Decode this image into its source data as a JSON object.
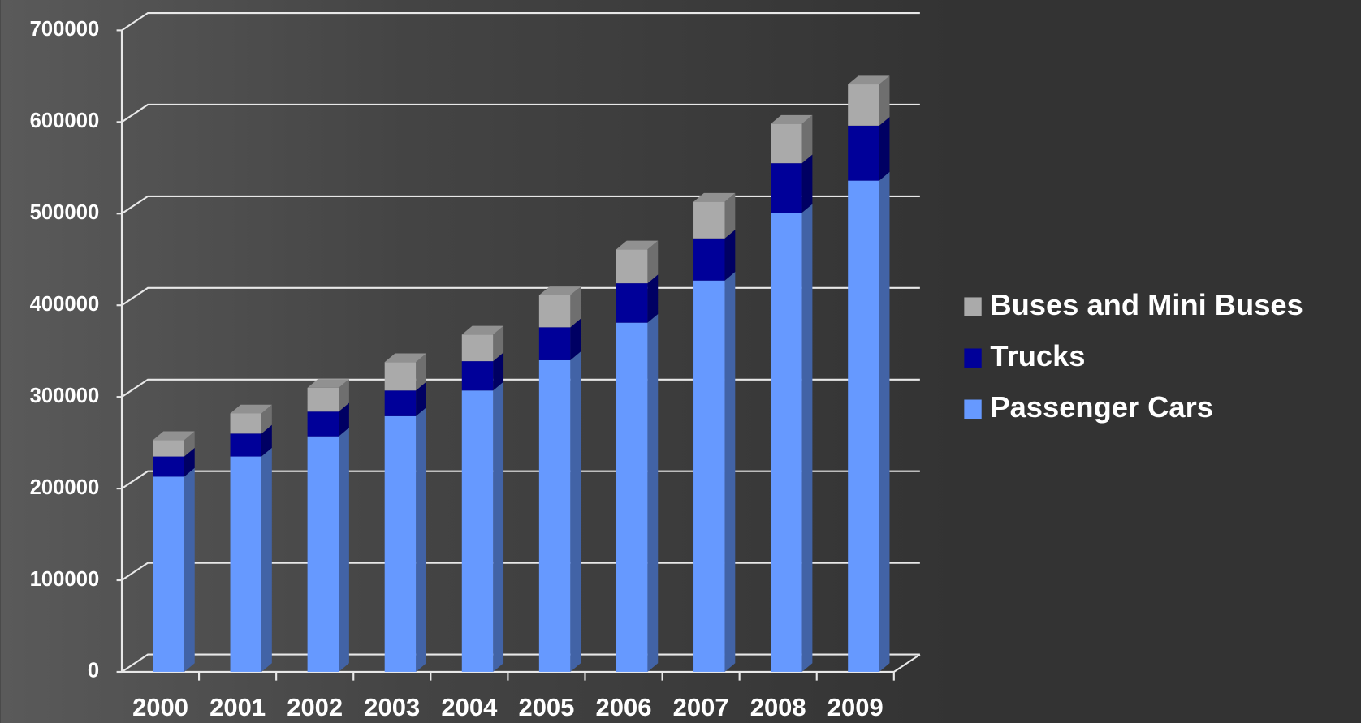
{
  "chart_data": {
    "type": "bar3d-stacked",
    "categories": [
      "2000",
      "2001",
      "2002",
      "2003",
      "2004",
      "2005",
      "2006",
      "2007",
      "2008",
      "2009"
    ],
    "series": [
      {
        "name": "Passenger Cars",
        "color": "#6699ff",
        "values": [
          213000,
          235000,
          257000,
          279000,
          307000,
          340000,
          381000,
          427000,
          501000,
          536000
        ]
      },
      {
        "name": "Trucks",
        "color": "#000099",
        "values": [
          22000,
          25000,
          27000,
          28000,
          32000,
          36000,
          43000,
          46000,
          54000,
          60000
        ]
      },
      {
        "name": "Buses and Mini Buses",
        "color": "#aaaaaa",
        "values": [
          18000,
          22000,
          26000,
          31000,
          29000,
          35000,
          37000,
          40000,
          43000,
          45000
        ]
      }
    ],
    "ylim": [
      0,
      700000
    ],
    "yticks": [
      0,
      100000,
      200000,
      300000,
      400000,
      500000,
      600000,
      700000
    ],
    "grid": true,
    "legend": "right"
  }
}
